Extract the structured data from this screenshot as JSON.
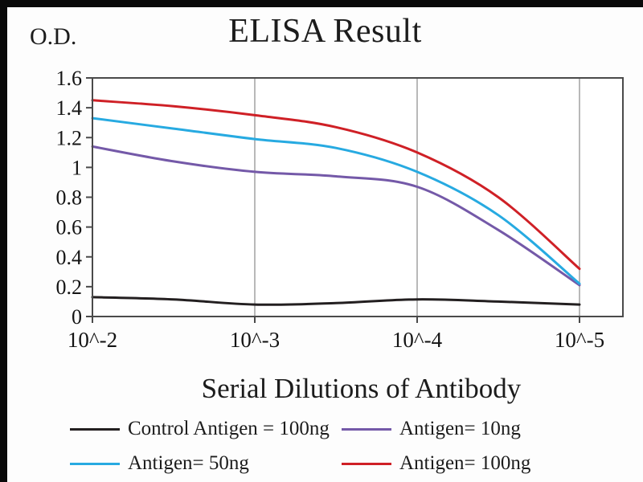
{
  "chart_data": {
    "type": "line",
    "title": "ELISA Result",
    "xlabel": "Serial Dilutions of Antibody",
    "ylabel": "O.D.",
    "x_tick_labels": [
      "10^-2",
      "10^-3",
      "10^-4",
      "10^-5"
    ],
    "y_ticks": [
      0,
      0.2,
      0.4,
      0.6,
      0.8,
      1,
      1.2,
      1.4,
      1.6
    ],
    "ylim": [
      0,
      1.6
    ],
    "grid": "vertical-only",
    "legend_position": "bottom",
    "x": [
      0,
      0.5,
      1,
      1.5,
      2,
      2.5,
      3
    ],
    "x_unit": "decade index from 10^-2 to 10^-5",
    "series": [
      {
        "name": "Control Antigen = 100ng",
        "color": "#231f20",
        "values": [
          0.13,
          0.115,
          0.08,
          0.09,
          0.115,
          0.1,
          0.08
        ]
      },
      {
        "name": "Antigen= 10ng",
        "color": "#7459a8",
        "values": [
          1.14,
          1.04,
          0.97,
          0.94,
          0.87,
          0.58,
          0.21
        ]
      },
      {
        "name": "Antigen= 50ng",
        "color": "#27aae1",
        "values": [
          1.33,
          1.26,
          1.19,
          1.13,
          0.97,
          0.68,
          0.22
        ]
      },
      {
        "name": "Antigen= 100ng",
        "color": "#cf2026",
        "values": [
          1.45,
          1.41,
          1.35,
          1.27,
          1.1,
          0.8,
          0.32
        ]
      }
    ],
    "frame_color": "#4a4a4a",
    "gridline_color": "#9b9b9b",
    "text_color": "#141414"
  }
}
